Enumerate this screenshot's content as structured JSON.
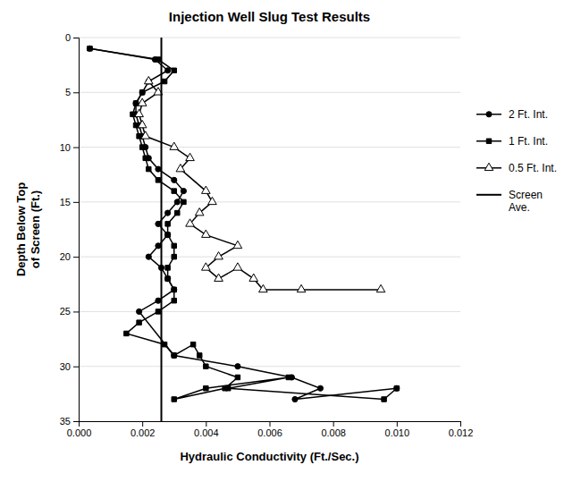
{
  "chart_data": {
    "type": "line",
    "title": "Injection Well Slug Test Results",
    "xlabel": "Hydraulic Conductivity (Ft./Sec.)",
    "ylabel": "Depth Below Top\nof Screen (Ft.)",
    "xlim": [
      0,
      0.012
    ],
    "ylim": [
      35,
      0
    ],
    "xticks": [
      {
        "value": 0.0,
        "label": "0.000"
      },
      0.002,
      0.004,
      0.006,
      0.008,
      {
        "value": 0.01,
        "label": "0.010"
      },
      0.012
    ],
    "yticks": [
      0,
      5,
      10,
      15,
      20,
      25,
      30,
      35
    ],
    "grid": "y",
    "legend": "right",
    "series": [
      {
        "name": "2 Ft. Int.",
        "color": "black",
        "marker": "circle",
        "line_style": "solid",
        "x": [
          0.00035,
          0.0024,
          0.0028,
          0.0022,
          0.002,
          0.0018,
          0.0018,
          0.0019,
          0.002,
          0.0021,
          0.0022,
          0.0025,
          0.003,
          0.0033,
          0.0031,
          0.0028,
          0.0025,
          0.0028,
          0.0025,
          0.0022,
          0.0026,
          0.0028,
          0.003,
          0.0025,
          0.0019,
          0.003,
          0.005,
          0.0067,
          0.0076,
          0.0068,
          0.01
        ],
        "values": [
          1,
          2,
          3,
          4,
          5,
          6,
          7,
          8,
          9,
          10,
          11,
          12,
          13,
          14,
          15,
          16,
          17,
          18,
          19,
          20,
          21,
          22,
          23,
          24,
          25,
          29,
          30,
          31,
          32,
          33,
          32
        ]
      },
      {
        "name": "1 Ft. Int.",
        "color": "black",
        "marker": "square",
        "line_style": "solid",
        "x": [
          0.00035,
          0.0025,
          0.003,
          0.0027,
          0.002,
          0.0018,
          0.0017,
          0.0018,
          0.0019,
          0.002,
          0.0021,
          0.0022,
          0.0025,
          0.003,
          0.0033,
          0.0031,
          0.0028,
          0.0028,
          0.003,
          0.003,
          0.0028,
          0.0028,
          0.003,
          0.003,
          0.0025,
          0.0019,
          0.0015,
          0.0027,
          0.003,
          0.0036,
          0.0038,
          0.004,
          0.005,
          0.0046,
          0.003,
          0.004,
          0.0066,
          0.0047,
          0.0096,
          0.01
        ],
        "values": [
          1,
          2,
          3,
          4,
          5,
          6,
          7,
          8,
          9,
          10,
          11,
          12,
          13,
          14,
          15,
          16,
          17,
          18,
          19,
          20,
          21,
          22,
          23,
          24,
          25,
          26,
          27,
          28,
          29,
          28,
          29,
          30,
          31,
          32,
          33,
          32,
          31,
          32,
          33,
          32
        ]
      },
      {
        "name": "0.5 Ft. Int.",
        "color": "black",
        "marker": "triangle-open",
        "line_style": "solid",
        "x": [
          0.0022,
          0.0025,
          0.002,
          0.0019,
          0.002,
          0.0021,
          0.003,
          0.0035,
          0.0032,
          0.004,
          0.0042,
          0.0038,
          0.0035,
          0.004,
          0.005,
          0.0044,
          0.004,
          0.0044,
          0.005,
          0.0055,
          0.0058,
          0.007,
          0.0095
        ],
        "values": [
          4,
          5,
          6,
          7,
          8,
          9,
          10,
          11,
          12,
          14,
          15,
          16,
          17,
          18,
          19,
          20,
          21,
          22,
          21,
          22,
          23,
          23,
          23
        ]
      },
      {
        "name": "Screen\nAve.",
        "type": "vline",
        "color": "black",
        "line_style": "solid",
        "x": [
          0.0026
        ]
      }
    ]
  }
}
